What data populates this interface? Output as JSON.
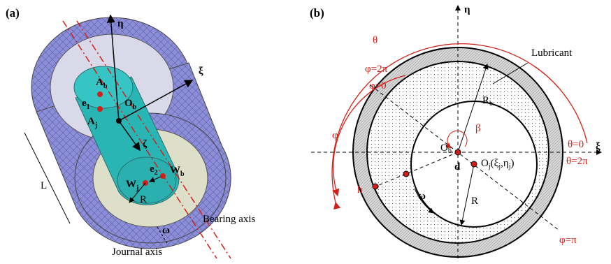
{
  "panel_a": {
    "tag": "(a)",
    "eta": "η",
    "xi": "ξ",
    "zeta": "ζ",
    "A_b": {
      "main": "A",
      "sub": "b"
    },
    "e_1": {
      "main": "e",
      "sub": "1"
    },
    "A_j": {
      "main": "A",
      "sub": "j"
    },
    "O_b": {
      "main": "O",
      "sub": "b"
    },
    "e_2": {
      "main": "e",
      "sub": "2"
    },
    "W_j": {
      "main": "W",
      "sub": "j"
    },
    "W_b": {
      "main": "W",
      "sub": "b"
    },
    "R": "R",
    "L": "L",
    "bearing_axis": "Bearing axis",
    "omega": "ω",
    "journal_axis": "Journal axis"
  },
  "panel_b": {
    "tag": "(b)",
    "eta": "η",
    "theta": "θ",
    "lubricant": "Lubricant",
    "phi_2pi": "φ=2π",
    "phi_0": "φ=0",
    "R_b": {
      "main": "R",
      "sub": "b"
    },
    "phi": "φ",
    "beta": "β",
    "O_b": {
      "main": "O",
      "sub": "b"
    },
    "theta_0": "θ=0",
    "xi": "ξ",
    "theta_2pi": "θ=2π",
    "O_j": [
      {
        "text": "O"
      },
      {
        "sub": "j"
      },
      {
        "text": "(ξ"
      },
      {
        "sub": "j"
      },
      {
        "text": ",η"
      },
      {
        "sub": "j"
      },
      {
        "text": ")"
      }
    ],
    "d": "d",
    "h": "h",
    "omega": "ω",
    "R": "R",
    "phi_pi": "φ=π"
  }
}
